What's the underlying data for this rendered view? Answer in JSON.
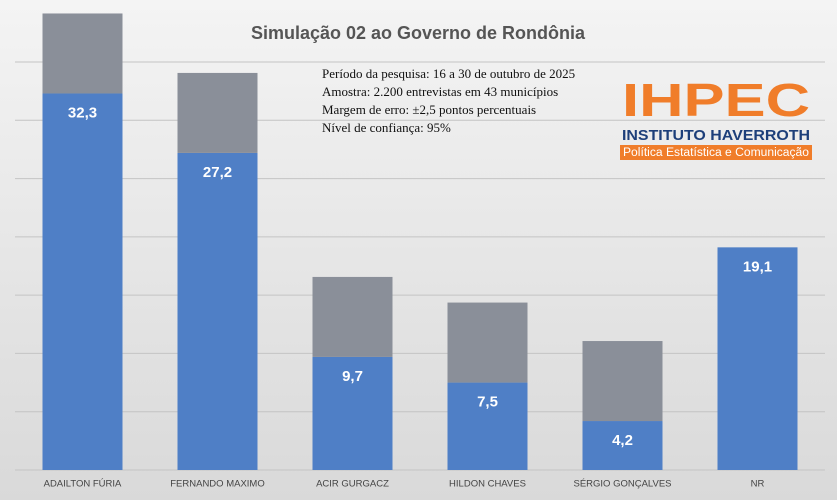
{
  "chart_data": {
    "type": "bar",
    "title": "Simulação 02 ao Governo de Rondônia",
    "notes": [
      "Período da pesquisa: 16 a 30 de outubro de 2025",
      "Amostra: 2.200 entrevistas em 43 municípios",
      "Margem de erro: ±2,5 pontos percentuais",
      "Nível de confiança: 95%"
    ],
    "logo": {
      "mark": "IHPEC",
      "name": "INSTITUTO HAVERROTH",
      "tagline": "Política Estatística e Comunicação"
    },
    "categories": [
      "ADAILTON FÚRIA",
      "FERNANDO MAXIMO",
      "ACIR GURGACZ",
      "HILDON CHAVES",
      "SÉRGIO GONÇALVES",
      "NR"
    ],
    "values": [
      32.3,
      27.2,
      9.7,
      7.5,
      4.2,
      19.1
    ],
    "value_labels": [
      "32,3",
      "27,2",
      "9,7",
      "7,5",
      "4,2",
      "19,1"
    ],
    "color": "#4f7fc6",
    "ylim": [
      0,
      35
    ],
    "yticks": [
      0,
      5,
      10,
      15,
      20,
      25,
      30,
      35
    ],
    "show_ytick_labels": false,
    "grid": true
  }
}
